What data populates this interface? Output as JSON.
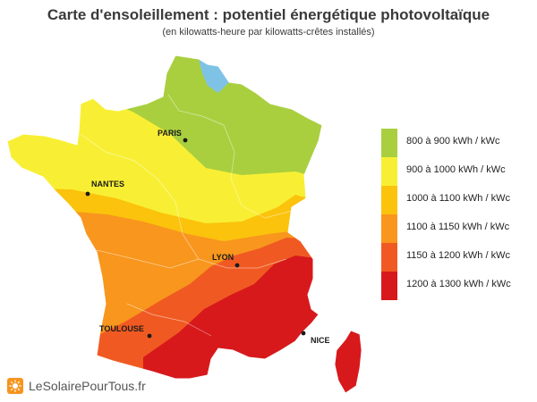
{
  "header": {
    "title": "Carte d'ensoleillement : potentiel énergétique photovoltaïque",
    "subtitle": "(en kilowatts-heure par kilowatts-crêtes installés)"
  },
  "legend": {
    "items": [
      {
        "label": "800 à 900 kWh / kWc",
        "color": "#a9cf3f"
      },
      {
        "label": "900 à 1000 kWh / kWc",
        "color": "#f8ef34"
      },
      {
        "label": "1000 à 1100 kWh / kWc",
        "color": "#fbc30c"
      },
      {
        "label": "1100 à 1150 kWh / kWc",
        "color": "#f8961d"
      },
      {
        "label": "1150 à 1200 kWh / kWc",
        "color": "#f05a22"
      },
      {
        "label": "1200 à 1300 kWh / kWc",
        "color": "#d7191c"
      }
    ]
  },
  "cities": {
    "paris": "PARIS",
    "nantes": "NANTES",
    "lyon": "LYON",
    "toulouse": "TOULOUSE",
    "nice": "NICE"
  },
  "branding": {
    "text": "LeSolairePourTous.fr",
    "logo_icon": "sun-icon"
  }
}
